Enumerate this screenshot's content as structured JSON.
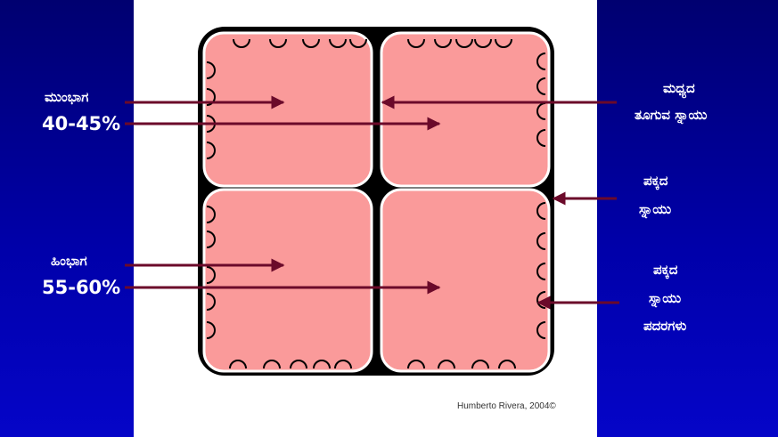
{
  "labels": {
    "anterior_title": "ಮುಂಭಾಗ",
    "anterior_percent": "40-45%",
    "posterior_title": "ಹಿಂಭಾಗ",
    "posterior_percent": "55-60%",
    "middle_line1": "ಮಧ್ಯದ",
    "middle_line2": "ತೂಗುವ ಸ್ನಾಯು",
    "lateral_line1": "ಪಕ್ಕದ",
    "lateral_line2": "ಸ್ನಾಯು",
    "fibers_line1": "ಪಕ್ಕದ",
    "fibers_line2": "ಸ್ನಾಯು",
    "fibers_line3": "ಪದರಗಳು"
  },
  "credit": "Humberto Rivera, 2004©",
  "colors": {
    "background_blue": "#0000a0",
    "quadrant_fill": "#fa9a9a",
    "arrow": "#6b0a2a",
    "frame": "#000000"
  }
}
